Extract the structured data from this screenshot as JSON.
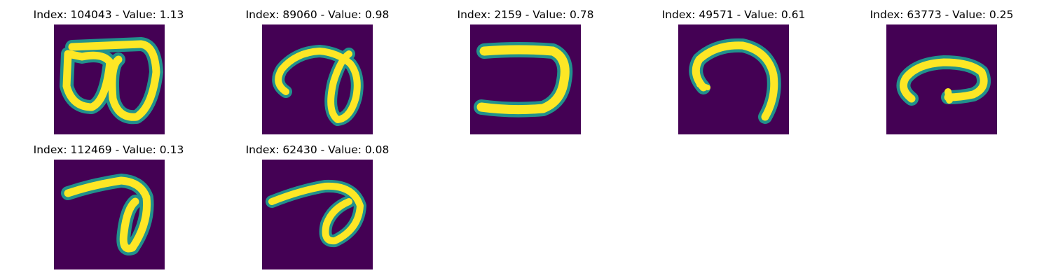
{
  "figure": {
    "background": "#ffffff",
    "palette": {
      "low": "#440154",
      "mid": "#21918c",
      "high": "#fde725"
    },
    "panels": [
      {
        "title": "Index: 104043 - Value: 1.13",
        "digit_shape": "8-like"
      },
      {
        "title": "Index: 89060 - Value: 0.98",
        "digit_shape": "curl-loop"
      },
      {
        "title": "Index: 2159 - Value: 0.78",
        "digit_shape": "reversed-C"
      },
      {
        "title": "Index: 49571 - Value: 0.61",
        "digit_shape": "arch"
      },
      {
        "title": "Index: 63773 - Value: 0.25",
        "digit_shape": "flat-loop"
      },
      {
        "title": "Index: 112469 - Value: 0.13",
        "digit_shape": "hook-7"
      },
      {
        "title": "Index: 62430 - Value: 0.08",
        "digit_shape": "slanted-hook"
      }
    ]
  }
}
